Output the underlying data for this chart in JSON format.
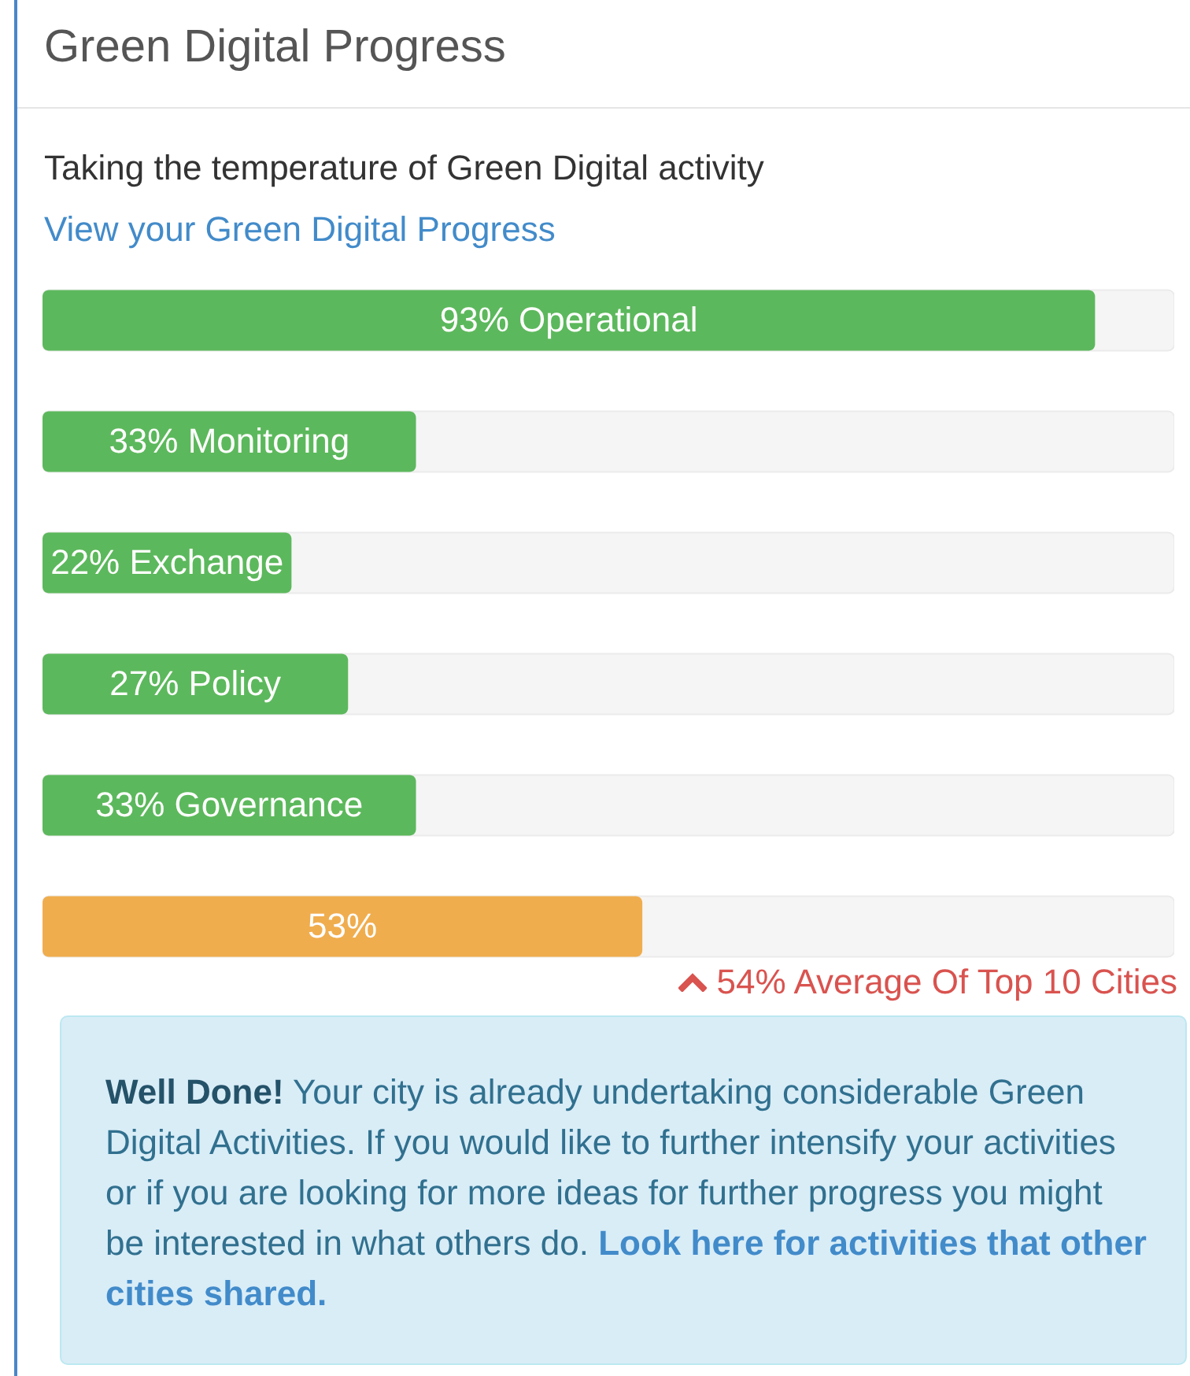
{
  "chart_data": {
    "type": "bar",
    "orientation": "horizontal",
    "title": "Green Digital Progress",
    "subtitle": "Taking the temperature of Green Digital activity",
    "categories": [
      null,
      null,
      null,
      null,
      null,
      null
    ],
    "values": [
      93,
      33,
      22,
      27,
      33,
      53
    ],
    "colors": [
      "#5cb85c",
      "#5cb85c",
      "#5cb85c",
      "#5cb85c",
      "#5cb85c",
      "#f0ad4e"
    ],
    "value_labels": [
      "93% Operational",
      "33% Monitoring",
      "22% Exchange",
      "27% Policy",
      "33% Governance",
      "53%"
    ],
    "xlim": [
      0,
      100
    ],
    "annotations": [
      "View your Green Digital Progress",
      "54% Average Of Top 10 Cities",
      "Well Done!",
      "Your city is already undertaking considerable Green Digital Activities. If you would like to further intensify your activities or if you are looking for more ideas for further progress you might be interested in what others do.",
      "Look here for activities that other cities shared."
    ]
  }
}
